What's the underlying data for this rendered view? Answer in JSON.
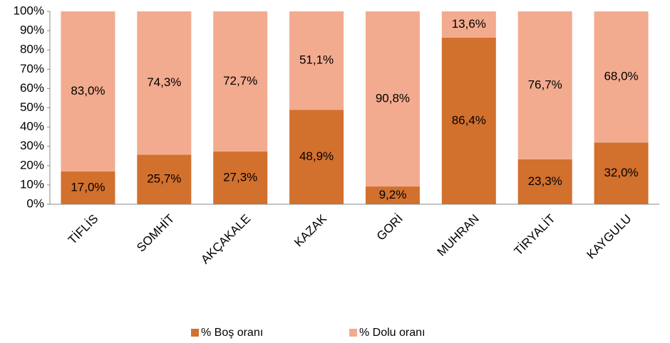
{
  "chart_data": {
    "type": "stacked_bar",
    "categories": [
      "TİFLİS",
      "SOMHİT",
      "AKÇAKALE",
      "KAZAK",
      "GORİ",
      "MUHRAN",
      "TİRYALİT",
      "KAYGULU"
    ],
    "series": [
      {
        "name": "% Boş oranı",
        "color": "#d2702e",
        "values": [
          17.0,
          25.7,
          27.3,
          48.9,
          9.2,
          86.4,
          23.3,
          32.0
        ],
        "value_labels": [
          "17,0%",
          "25,7%",
          "27,3%",
          "48,9%",
          "9,2%",
          "86,4%",
          "23,3%",
          "32,0%"
        ]
      },
      {
        "name": "% Dolu oranı",
        "color": "#f2ab8e",
        "values": [
          83.0,
          74.3,
          72.7,
          51.1,
          90.8,
          13.6,
          76.7,
          68.0
        ],
        "value_labels": [
          "83,0%",
          "74,3%",
          "72,7%",
          "51,1%",
          "90,8%",
          "13,6%",
          "76,7%",
          "68,0%"
        ]
      }
    ],
    "ylim": [
      0,
      100
    ],
    "yticks": [
      {
        "value": 0,
        "label": "0%"
      },
      {
        "value": 10,
        "label": "10%"
      },
      {
        "value": 20,
        "label": "20%"
      },
      {
        "value": 30,
        "label": "30%"
      },
      {
        "value": 40,
        "label": "40%"
      },
      {
        "value": 50,
        "label": "50%"
      },
      {
        "value": 60,
        "label": "60%"
      },
      {
        "value": 70,
        "label": "70%"
      },
      {
        "value": 80,
        "label": "80%"
      },
      {
        "value": 90,
        "label": "90%"
      },
      {
        "value": 100,
        "label": "100%"
      }
    ],
    "legend": "bottom"
  }
}
